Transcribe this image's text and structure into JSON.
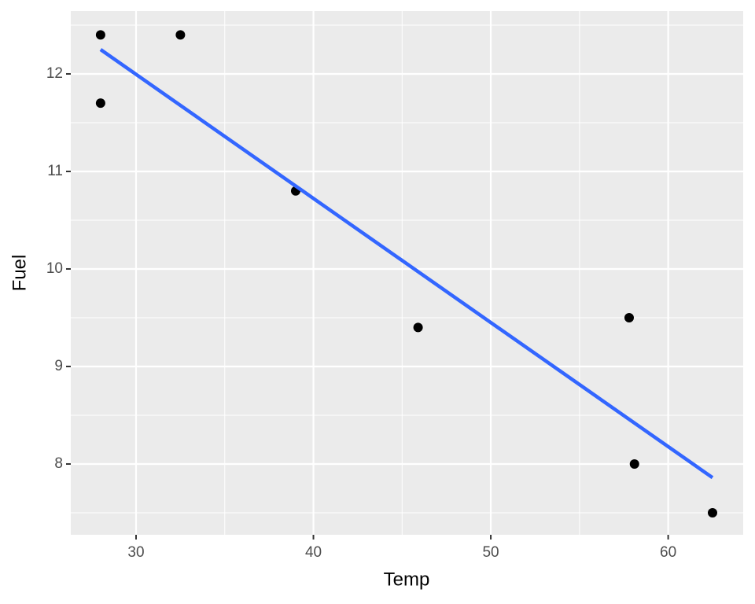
{
  "chart_data": {
    "type": "scatter",
    "x_label": "Temp",
    "y_label": "Fuel",
    "series": [
      {
        "x": [
          28,
          28,
          32.5,
          39,
          45.9,
          57.8,
          58.1,
          62.5
        ],
        "values": [
          12.4,
          11.7,
          12.4,
          10.8,
          9.4,
          9.5,
          8.0,
          7.5
        ],
        "color": "#000000"
      }
    ],
    "trend": {
      "x": [
        28,
        62.5
      ],
      "values": [
        12.25,
        7.86
      ],
      "color": "#3366ff"
    },
    "xlim": [
      26.32,
      64.23
    ],
    "ylim": [
      7.274,
      12.645
    ],
    "xticks": [
      30,
      40,
      50,
      60
    ],
    "yticks": [
      8,
      9,
      10,
      11,
      12
    ],
    "xminor": [
      35,
      45,
      55
    ],
    "yminor": [
      7.5,
      8.5,
      9.5,
      10.5,
      11.5,
      12.5
    ],
    "grid": true
  }
}
